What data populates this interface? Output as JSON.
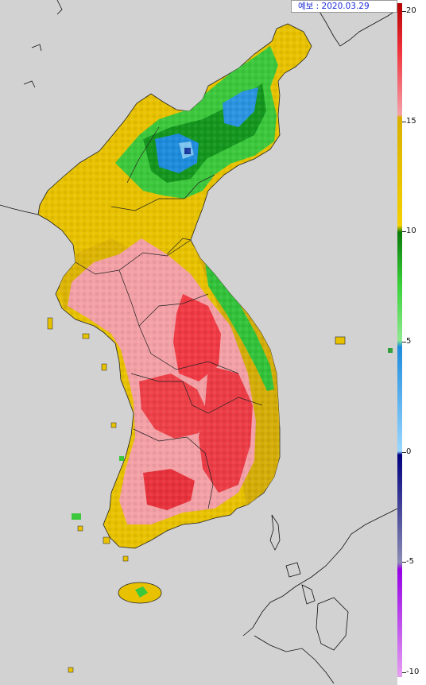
{
  "header": {
    "forecast_label": "예보 : 2020.03.29"
  },
  "legend": {
    "ticks": [
      "20",
      "15",
      "10",
      "5",
      "0",
      "-5",
      "-10"
    ],
    "colors": {
      "top_red": "#b50000",
      "red": "#f0323c",
      "pink": "#f5a0a8",
      "mustard": "#d9b000",
      "gold": "#f5d000",
      "dark_green": "#0a7a0a",
      "green": "#3cd23c",
      "light_green": "#90e890",
      "blue": "#1e8cdc",
      "light_blue": "#9ad7ff",
      "navy": "#000080",
      "grey_purple": "#8c8cb4",
      "purple": "#9600e6",
      "light_purple": "#e6a0f0"
    }
  },
  "map": {
    "background": "#d2d2d2"
  }
}
